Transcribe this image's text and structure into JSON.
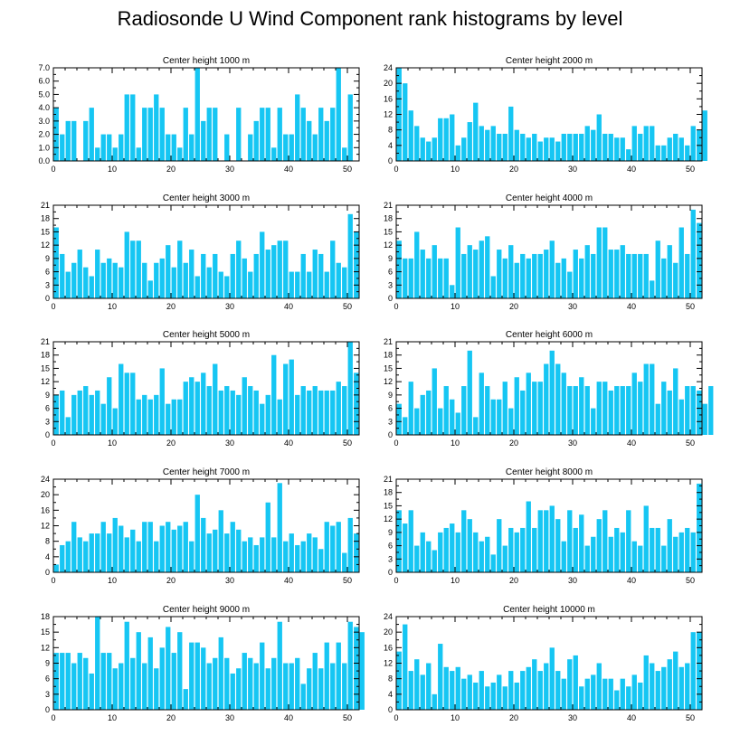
{
  "title": "Radiosonde U Wind Component rank histograms by level",
  "chart_data": [
    {
      "type": "bar",
      "title": "Center height 1000 m",
      "xlim": [
        0,
        52
      ],
      "x_ticks": [
        0,
        10,
        20,
        30,
        40,
        50
      ],
      "ylim": [
        0,
        7
      ],
      "y_ticks": [
        0,
        1,
        2,
        3,
        4,
        5,
        6,
        7
      ],
      "y_tick_labels": [
        "0.0",
        "1.0",
        "2.0",
        "3.0",
        "4.0",
        "5.0",
        "6.0",
        "7.0"
      ],
      "values": [
        4,
        2,
        3,
        3,
        0,
        3,
        4,
        1,
        2,
        2,
        1,
        2,
        5,
        5,
        1,
        4,
        4,
        5,
        4,
        2,
        2,
        1,
        4,
        2,
        7,
        3,
        4,
        4,
        0,
        2,
        0,
        4,
        0,
        2,
        3,
        4,
        4,
        1,
        4,
        2,
        2,
        5,
        4,
        3,
        2,
        4,
        3,
        4,
        7,
        1,
        5
      ]
    },
    {
      "type": "bar",
      "title": "Center height 2000 m",
      "xlim": [
        0,
        52
      ],
      "x_ticks": [
        0,
        10,
        20,
        30,
        40,
        50
      ],
      "ylim": [
        0,
        24
      ],
      "y_ticks": [
        0,
        4,
        8,
        12,
        16,
        20,
        24
      ],
      "y_tick_labels": [
        "0",
        "4",
        "8",
        "12",
        "16",
        "20",
        "24"
      ],
      "values": [
        24,
        20,
        13,
        9,
        6,
        5,
        6,
        11,
        11,
        12,
        4,
        6,
        10,
        15,
        9,
        8,
        9,
        7,
        7,
        14,
        8,
        7,
        6,
        7,
        5,
        6,
        6,
        5,
        7,
        7,
        7,
        7,
        9,
        8,
        12,
        7,
        7,
        6,
        6,
        3,
        9,
        7,
        9,
        9,
        4,
        4,
        6,
        7,
        6,
        4,
        9,
        8,
        13
      ]
    },
    {
      "type": "bar",
      "title": "Center height 3000 m",
      "xlim": [
        0,
        52
      ],
      "x_ticks": [
        0,
        10,
        20,
        30,
        40,
        50
      ],
      "ylim": [
        0,
        21
      ],
      "y_ticks": [
        0,
        3,
        6,
        9,
        12,
        15,
        18,
        21
      ],
      "y_tick_labels": [
        "0",
        "3",
        "6",
        "9",
        "12",
        "15",
        "18",
        "21"
      ],
      "values": [
        16,
        10,
        6,
        8,
        11,
        7,
        5,
        11,
        8,
        9,
        8,
        7,
        15,
        13,
        13,
        8,
        4,
        8,
        9,
        12,
        7,
        13,
        8,
        11,
        5,
        10,
        7,
        10,
        6,
        5,
        10,
        13,
        9,
        6,
        10,
        15,
        11,
        12,
        13,
        13,
        6,
        6,
        10,
        6,
        11,
        10,
        6,
        13,
        8,
        7,
        19,
        15
      ]
    },
    {
      "type": "bar",
      "title": "Center height 4000 m",
      "xlim": [
        0,
        52
      ],
      "x_ticks": [
        0,
        10,
        20,
        30,
        40,
        50
      ],
      "ylim": [
        0,
        21
      ],
      "y_ticks": [
        0,
        3,
        6,
        9,
        12,
        15,
        18,
        21
      ],
      "y_tick_labels": [
        "0",
        "3",
        "6",
        "9",
        "12",
        "15",
        "18",
        "21"
      ],
      "values": [
        13,
        9,
        9,
        15,
        11,
        9,
        12,
        9,
        9,
        3,
        16,
        10,
        12,
        11,
        13,
        14,
        5,
        11,
        9,
        12,
        8,
        10,
        9,
        10,
        10,
        11,
        13,
        8,
        9,
        6,
        11,
        9,
        12,
        10,
        16,
        16,
        11,
        11,
        12,
        10,
        10,
        10,
        10,
        4,
        13,
        9,
        12,
        8,
        16,
        10,
        20,
        17
      ]
    },
    {
      "type": "bar",
      "title": "Center height 5000 m",
      "xlim": [
        0,
        52
      ],
      "x_ticks": [
        0,
        10,
        20,
        30,
        40,
        50
      ],
      "ylim": [
        0,
        21
      ],
      "y_ticks": [
        0,
        3,
        6,
        9,
        12,
        15,
        18,
        21
      ],
      "y_tick_labels": [
        "0",
        "3",
        "6",
        "9",
        "12",
        "15",
        "18",
        "21"
      ],
      "values": [
        9,
        10,
        4,
        9,
        10,
        11,
        9,
        10,
        7,
        13,
        6,
        16,
        14,
        14,
        8,
        9,
        8,
        9,
        15,
        7,
        8,
        8,
        12,
        13,
        12,
        14,
        11,
        16,
        10,
        11,
        10,
        9,
        13,
        11,
        10,
        7,
        9,
        18,
        8,
        16,
        17,
        9,
        11,
        10,
        11,
        10,
        10,
        10,
        12,
        11,
        21,
        14
      ]
    },
    {
      "type": "bar",
      "title": "Center height 6000 m",
      "xlim": [
        0,
        52
      ],
      "x_ticks": [
        0,
        10,
        20,
        30,
        40,
        50
      ],
      "ylim": [
        0,
        21
      ],
      "y_ticks": [
        0,
        3,
        6,
        9,
        12,
        15,
        18,
        21
      ],
      "y_tick_labels": [
        "0",
        "3",
        "6",
        "9",
        "12",
        "15",
        "18",
        "21"
      ],
      "values": [
        7,
        4,
        12,
        6,
        9,
        10,
        15,
        6,
        11,
        8,
        5,
        11,
        19,
        4,
        14,
        11,
        8,
        8,
        12,
        6,
        13,
        10,
        14,
        12,
        12,
        16,
        19,
        16,
        14,
        11,
        11,
        13,
        11,
        6,
        12,
        12,
        10,
        11,
        11,
        11,
        14,
        12,
        16,
        16,
        7,
        12,
        10,
        15,
        8,
        11,
        11,
        10,
        7,
        11
      ]
    },
    {
      "type": "bar",
      "title": "Center height 7000 m",
      "xlim": [
        0,
        52
      ],
      "x_ticks": [
        0,
        10,
        20,
        30,
        40,
        50
      ],
      "ylim": [
        0,
        24
      ],
      "y_ticks": [
        0,
        4,
        8,
        12,
        16,
        20,
        24
      ],
      "y_tick_labels": [
        "0",
        "4",
        "8",
        "12",
        "16",
        "20",
        "24"
      ],
      "values": [
        2,
        7,
        8,
        13,
        9,
        8,
        10,
        10,
        13,
        10,
        14,
        12,
        9,
        11,
        8,
        13,
        13,
        8,
        12,
        13,
        11,
        12,
        13,
        8,
        20,
        14,
        10,
        11,
        16,
        10,
        13,
        11,
        8,
        9,
        7,
        9,
        18,
        9,
        23,
        8,
        10,
        7,
        8,
        10,
        9,
        6,
        13,
        12,
        13,
        5,
        14,
        10
      ]
    },
    {
      "type": "bar",
      "title": "Center height 8000 m",
      "xlim": [
        0,
        52
      ],
      "x_ticks": [
        0,
        10,
        20,
        30,
        40,
        50
      ],
      "ylim": [
        0,
        21
      ],
      "y_ticks": [
        0,
        3,
        6,
        9,
        12,
        15,
        18,
        21
      ],
      "y_tick_labels": [
        "0",
        "3",
        "6",
        "9",
        "12",
        "15",
        "18",
        "21"
      ],
      "values": [
        14,
        11,
        14,
        6,
        9,
        7,
        5,
        9,
        10,
        11,
        9,
        14,
        12,
        9,
        7,
        8,
        4,
        12,
        6,
        10,
        9,
        10,
        16,
        10,
        14,
        14,
        15,
        12,
        7,
        14,
        10,
        13,
        6,
        8,
        12,
        14,
        8,
        10,
        9,
        14,
        7,
        6,
        15,
        10,
        10,
        6,
        12,
        8,
        9,
        10,
        9,
        20
      ]
    },
    {
      "type": "bar",
      "title": "Center height 9000 m",
      "xlim": [
        0,
        52
      ],
      "x_ticks": [
        0,
        10,
        20,
        30,
        40,
        50
      ],
      "ylim": [
        0,
        18
      ],
      "y_ticks": [
        0,
        3,
        6,
        9,
        12,
        15,
        18
      ],
      "y_tick_labels": [
        "0",
        "3",
        "6",
        "9",
        "12",
        "15",
        "18"
      ],
      "values": [
        11,
        11,
        11,
        9,
        11,
        10,
        7,
        18,
        11,
        11,
        8,
        9,
        17,
        10,
        15,
        9,
        14,
        8,
        12,
        16,
        11,
        15,
        4,
        13,
        13,
        12,
        9,
        10,
        14,
        10,
        7,
        8,
        11,
        10,
        9,
        13,
        8,
        10,
        17,
        9,
        9,
        10,
        5,
        8,
        11,
        8,
        13,
        9,
        13,
        9,
        17,
        16,
        15
      ]
    },
    {
      "type": "bar",
      "title": "Center height 10000 m",
      "xlim": [
        0,
        52
      ],
      "x_ticks": [
        0,
        10,
        20,
        30,
        40,
        50
      ],
      "ylim": [
        0,
        24
      ],
      "y_ticks": [
        0,
        4,
        8,
        12,
        16,
        20,
        24
      ],
      "y_tick_labels": [
        "0",
        "4",
        "8",
        "12",
        "16",
        "20",
        "24"
      ],
      "values": [
        15,
        22,
        10,
        13,
        9,
        12,
        4,
        17,
        11,
        10,
        11,
        8,
        9,
        7,
        10,
        6,
        7,
        9,
        6,
        10,
        7,
        10,
        11,
        13,
        10,
        12,
        16,
        10,
        8,
        13,
        14,
        6,
        8,
        9,
        12,
        8,
        8,
        5,
        8,
        6,
        9,
        7,
        14,
        12,
        10,
        11,
        13,
        15,
        11,
        12,
        20,
        20
      ]
    }
  ]
}
